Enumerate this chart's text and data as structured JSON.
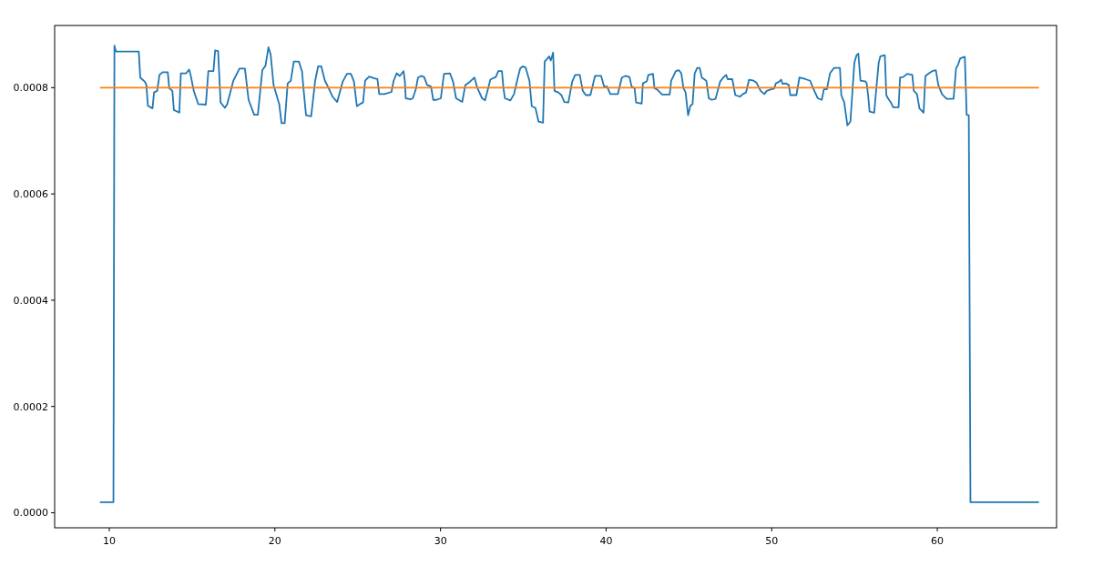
{
  "chart_data": {
    "type": "line",
    "xlim": [
      6.7,
      67.2
    ],
    "ylim": [
      -2.83e-05,
      0.000917
    ],
    "xticks": [
      10,
      20,
      30,
      40,
      50,
      60
    ],
    "yticks": [
      {
        "value": 0,
        "label": "0.0000"
      },
      {
        "value": 0.0002,
        "label": "0.0002"
      },
      {
        "value": 0.0004,
        "label": "0.0004"
      },
      {
        "value": 0.0006,
        "label": "0.0006"
      },
      {
        "value": 0.0008,
        "label": "0.0008"
      }
    ],
    "grid": false,
    "marker": "none",
    "line_style": "solid",
    "series": [
      {
        "color": "#1f77b4",
        "x": [
          9.47,
          10.25,
          10.31,
          10.4,
          11.78,
          11.87,
          12.15,
          12.24,
          12.33,
          12.61,
          12.7,
          12.89,
          13.03,
          13.22,
          13.53,
          13.62,
          13.81,
          13.9,
          14.23,
          14.32,
          14.64,
          14.82,
          14.91,
          15.1,
          15.37,
          15.83,
          15.98,
          16.29,
          16.39,
          16.57,
          16.72,
          16.98,
          17.12,
          17.49,
          17.86,
          18.19,
          18.41,
          18.75,
          18.97,
          19.24,
          19.43,
          19.61,
          19.74,
          19.92,
          20.26,
          20.4,
          20.59,
          20.77,
          20.96,
          21.14,
          21.45,
          21.64,
          21.73,
          21.88,
          22.19,
          22.43,
          22.61,
          22.8,
          23.02,
          23.2,
          23.48,
          23.76,
          24.09,
          24.35,
          24.59,
          24.77,
          24.95,
          25.19,
          25.32,
          25.45,
          25.69,
          25.97,
          26.19,
          26.3,
          26.61,
          27.04,
          27.17,
          27.35,
          27.54,
          27.77,
          27.85,
          27.9,
          28.18,
          28.33,
          28.51,
          28.64,
          28.82,
          29.01,
          29.19,
          29.43,
          29.56,
          29.75,
          30.02,
          30.21,
          30.57,
          30.76,
          30.94,
          31.31,
          31.5,
          31.77,
          32.05,
          32.23,
          32.51,
          32.69,
          33.01,
          33.19,
          33.34,
          33.49,
          33.71,
          33.8,
          33.89,
          34.22,
          34.44,
          34.67,
          34.81,
          34.96,
          35.14,
          35.37,
          35.51,
          35.73,
          35.92,
          36.19,
          36.29,
          36.47,
          36.56,
          36.66,
          36.8,
          36.88,
          37.12,
          37.3,
          37.48,
          37.72,
          37.95,
          38.13,
          38.41,
          38.59,
          38.77,
          39.05,
          39.33,
          39.7,
          39.88,
          40.06,
          40.25,
          40.71,
          40.95,
          41.17,
          41.41,
          41.54,
          41.72,
          41.81,
          42.15,
          42.22,
          42.46,
          42.55,
          42.83,
          42.92,
          43.1,
          43.38,
          43.84,
          43.93,
          44.21,
          44.39,
          44.54,
          44.67,
          44.8,
          44.95,
          45.09,
          45.22,
          45.35,
          45.5,
          45.65,
          45.78,
          46.05,
          46.2,
          46.38,
          46.61,
          46.88,
          47.07,
          47.25,
          47.34,
          47.62,
          47.8,
          48.08,
          48.26,
          48.45,
          48.63,
          48.91,
          49.09,
          49.33,
          49.55,
          49.7,
          49.89,
          50.14,
          50.25,
          50.44,
          50.57,
          50.66,
          50.84,
          51.03,
          51.12,
          51.49,
          51.67,
          52.04,
          52.32,
          52.5,
          52.78,
          53.02,
          53.15,
          53.33,
          53.52,
          53.76,
          54.12,
          54.2,
          54.38,
          54.57,
          54.75,
          54.86,
          54.99,
          55.12,
          55.23,
          55.36,
          55.64,
          55.73,
          55.82,
          55.91,
          56.19,
          56.28,
          56.46,
          56.56,
          56.83,
          56.92,
          57.02,
          57.2,
          57.33,
          57.66,
          57.75,
          57.94,
          58.18,
          58.49,
          58.58,
          58.77,
          58.92,
          59.17,
          59.28,
          59.5,
          59.69,
          59.91,
          60.06,
          60.28,
          60.43,
          60.57,
          60.98,
          61.13,
          61.26,
          61.38,
          61.66,
          61.72,
          61.77,
          61.86,
          61.9,
          62.0,
          66.1
        ],
        "values": [
          2e-05,
          2e-05,
          0.000879,
          0.000868,
          0.000868,
          0.000819,
          0.000811,
          0.000805,
          0.000766,
          0.000761,
          0.000791,
          0.000794,
          0.000824,
          0.000829,
          0.000829,
          0.000799,
          0.000794,
          0.000758,
          0.000753,
          0.000827,
          0.000827,
          0.000834,
          0.000824,
          0.000794,
          0.000769,
          0.000768,
          0.000831,
          0.000831,
          0.00087,
          0.000869,
          0.000772,
          0.000762,
          0.000769,
          0.000813,
          0.000836,
          0.000836,
          0.000777,
          0.000749,
          0.000749,
          0.000833,
          0.000841,
          0.000876,
          0.000863,
          0.000805,
          0.000769,
          0.000733,
          0.000733,
          0.000808,
          0.000813,
          0.000849,
          0.000849,
          0.00083,
          0.000797,
          0.000748,
          0.000746,
          0.000813,
          0.00084,
          0.00084,
          0.000813,
          0.000802,
          0.000783,
          0.000773,
          0.000811,
          0.000826,
          0.000826,
          0.000812,
          0.000765,
          0.00077,
          0.000772,
          0.000813,
          0.000821,
          0.000818,
          0.000816,
          0.000788,
          0.000788,
          0.000792,
          0.000813,
          0.000827,
          0.000822,
          0.000831,
          0.000811,
          0.00078,
          0.000778,
          0.00078,
          0.000797,
          0.000819,
          0.000822,
          0.00082,
          0.000805,
          0.000802,
          0.000777,
          0.000777,
          0.00078,
          0.000826,
          0.000827,
          0.000811,
          0.00078,
          0.000773,
          0.000805,
          0.000811,
          0.000819,
          0.000799,
          0.00078,
          0.000776,
          0.000815,
          0.000818,
          0.00082,
          0.000831,
          0.000831,
          0.000799,
          0.00078,
          0.000776,
          0.000788,
          0.000819,
          0.000836,
          0.00084,
          0.000838,
          0.000813,
          0.000765,
          0.000762,
          0.000736,
          0.000734,
          0.000849,
          0.000855,
          0.000859,
          0.000851,
          0.000866,
          0.000794,
          0.000791,
          0.000786,
          0.000773,
          0.000772,
          0.000811,
          0.000824,
          0.000824,
          0.000794,
          0.000786,
          0.000786,
          0.000822,
          0.000822,
          0.000802,
          0.000802,
          0.000788,
          0.000788,
          0.000819,
          0.000822,
          0.00082,
          0.000802,
          0.000799,
          0.000772,
          0.00077,
          0.000808,
          0.000812,
          0.000824,
          0.000826,
          0.000799,
          0.000796,
          0.000787,
          0.000787,
          0.000813,
          0.000831,
          0.000833,
          0.000827,
          0.000799,
          0.000791,
          0.000748,
          0.000766,
          0.000769,
          0.000827,
          0.000837,
          0.000837,
          0.000819,
          0.000813,
          0.00078,
          0.000777,
          0.000779,
          0.000811,
          0.000819,
          0.000824,
          0.000816,
          0.000816,
          0.000786,
          0.000783,
          0.000788,
          0.000791,
          0.000815,
          0.000813,
          0.000809,
          0.000794,
          0.000788,
          0.000794,
          0.000796,
          0.000798,
          0.000808,
          0.000811,
          0.000815,
          0.000807,
          0.000808,
          0.000805,
          0.000786,
          0.000786,
          0.000819,
          0.000816,
          0.000813,
          0.000799,
          0.00078,
          0.000777,
          0.000797,
          0.000797,
          0.000827,
          0.000837,
          0.000837,
          0.000786,
          0.000772,
          0.000729,
          0.000736,
          0.000786,
          0.000847,
          0.000861,
          0.000864,
          0.000813,
          0.000812,
          0.000809,
          0.000786,
          0.000755,
          0.000753,
          0.000786,
          0.000847,
          0.000859,
          0.000861,
          0.000786,
          0.00078,
          0.000772,
          0.000763,
          0.000763,
          0.000819,
          0.00082,
          0.000826,
          0.000824,
          0.000794,
          0.000788,
          0.000761,
          0.000753,
          0.000822,
          0.000827,
          0.000831,
          0.000833,
          0.000805,
          0.000788,
          0.000783,
          0.000779,
          0.000779,
          0.000836,
          0.000844,
          0.000855,
          0.000858,
          0.000801,
          0.000749,
          0.000748,
          0.000748,
          2e-05,
          2e-05
        ]
      },
      {
        "color": "#ff7f0e",
        "x": [
          9.47,
          66.1
        ],
        "values": [
          0.0008,
          0.0008
        ]
      }
    ]
  }
}
